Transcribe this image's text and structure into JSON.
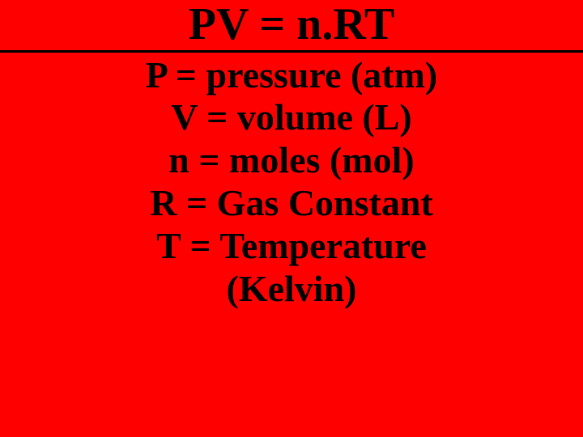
{
  "equation": "PV = n.RT",
  "definitions": {
    "p": "P = pressure (atm)",
    "v": "V = volume (L)",
    "n": "n = moles (mol)",
    "r": "R = Gas Constant",
    "t": "T = Temperature",
    "t_unit": "(Kelvin)"
  },
  "styling": {
    "background_color": "#ff0000",
    "text_color": "#000000",
    "divider_color": "#000000",
    "font_family": "Times New Roman",
    "equation_fontsize": 56,
    "definition_fontsize": 46,
    "font_weight": "bold"
  }
}
